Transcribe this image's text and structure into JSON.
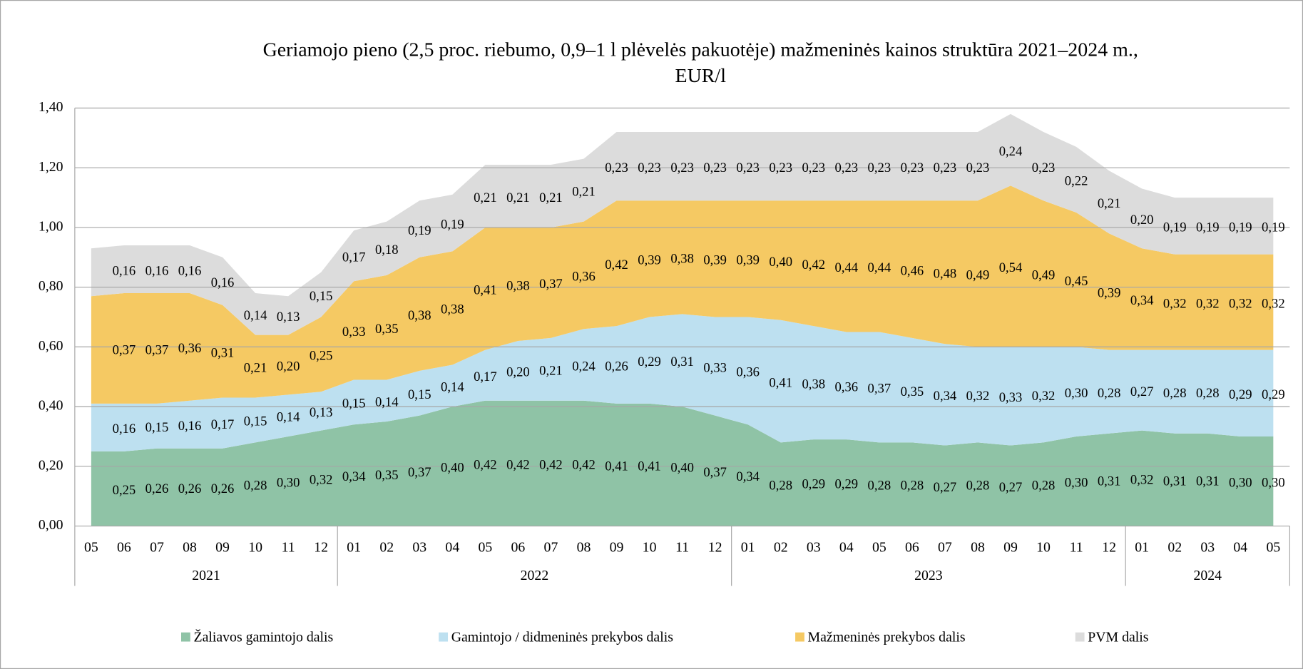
{
  "chart_data": {
    "type": "stacked_area",
    "title": "Geriamojo pieno (2,5 proc. riebumo, 0,9–1 l plėvelės pakuotėje) mažmeninės kainos struktūra 2021–2024 m.,",
    "subtitle": "EUR/l",
    "category_groups": [
      {
        "label": "2021",
        "categories": [
          "05",
          "06",
          "07",
          "08",
          "09",
          "10",
          "11",
          "12"
        ]
      },
      {
        "label": "2022",
        "categories": [
          "01",
          "02",
          "03",
          "04",
          "05",
          "06",
          "07",
          "08",
          "09",
          "10",
          "11",
          "12"
        ]
      },
      {
        "label": "2023",
        "categories": [
          "01",
          "02",
          "03",
          "04",
          "05",
          "06",
          "07",
          "08",
          "09",
          "10",
          "11",
          "12"
        ]
      },
      {
        "label": "2024",
        "categories": [
          "01",
          "02",
          "03",
          "04",
          "05"
        ]
      }
    ],
    "ylim": [
      0,
      1.4
    ],
    "yticks": [
      {
        "value": 0,
        "label": "0,00"
      },
      {
        "value": 0.2,
        "label": "0,20"
      },
      {
        "value": 0.4,
        "label": "0,40"
      },
      {
        "value": 0.6,
        "label": "0,60"
      },
      {
        "value": 0.8,
        "label": "0,80"
      },
      {
        "value": 1.0,
        "label": "1,00"
      },
      {
        "value": 1.2,
        "label": "1,20"
      },
      {
        "value": 1.4,
        "label": "1,40"
      }
    ],
    "grid": true,
    "legend": "bottom",
    "series": [
      {
        "name": "Žaliavos gamintojo dalis",
        "color": "#8fc3a6",
        "values": [
          0.25,
          0.25,
          0.26,
          0.26,
          0.26,
          0.28,
          0.3,
          0.32,
          0.34,
          0.35,
          0.37,
          0.4,
          0.42,
          0.42,
          0.42,
          0.42,
          0.41,
          0.41,
          0.4,
          0.37,
          0.34,
          0.28,
          0.29,
          0.29,
          0.28,
          0.28,
          0.27,
          0.28,
          0.27,
          0.28,
          0.3,
          0.31,
          0.32,
          0.31,
          0.31,
          0.3,
          0.3
        ],
        "value_labels": [
          null,
          "0,25",
          "0,26",
          "0,26",
          "0,26",
          "0,28",
          "0,30",
          "0,32",
          "0,34",
          "0,35",
          "0,37",
          "0,40",
          "0,42",
          "0,42",
          "0,42",
          "0,42",
          "0,41",
          "0,41",
          "0,40",
          "0,37",
          "0,34",
          "0,28",
          "0,29",
          "0,29",
          "0,28",
          "0,28",
          "0,27",
          "0,28",
          "0,27",
          "0,28",
          "0,30",
          "0,31",
          "0,32",
          "0,31",
          "0,31",
          "0,30",
          "0,30"
        ]
      },
      {
        "name": "Gamintojo / didmeninės prekybos dalis",
        "color": "#bde0f0",
        "values": [
          0.16,
          0.16,
          0.15,
          0.16,
          0.17,
          0.15,
          0.14,
          0.13,
          0.15,
          0.14,
          0.15,
          0.14,
          0.17,
          0.2,
          0.21,
          0.24,
          0.26,
          0.29,
          0.31,
          0.33,
          0.36,
          0.41,
          0.38,
          0.36,
          0.37,
          0.35,
          0.34,
          0.32,
          0.33,
          0.32,
          0.3,
          0.28,
          0.27,
          0.28,
          0.28,
          0.29,
          0.29
        ],
        "value_labels": [
          null,
          "0,16",
          "0,15",
          "0,16",
          "0,17",
          "0,15",
          "0,14",
          "0,13",
          "0,15",
          "0,14",
          "0,15",
          "0,14",
          "0,17",
          "0,20",
          "0,21",
          "0,24",
          "0,26",
          "0,29",
          "0,31",
          "0,33",
          "0,36",
          "0,41",
          "0,38",
          "0,36",
          "0,37",
          "0,35",
          "0,34",
          "0,32",
          "0,33",
          "0,32",
          "0,30",
          "0,28",
          "0,27",
          "0,28",
          "0,28",
          "0,29",
          "0,29"
        ]
      },
      {
        "name": "Mažmeninės prekybos dalis",
        "color": "#f5c963",
        "values": [
          0.36,
          0.37,
          0.37,
          0.36,
          0.31,
          0.21,
          0.2,
          0.25,
          0.33,
          0.35,
          0.38,
          0.38,
          0.41,
          0.38,
          0.37,
          0.36,
          0.42,
          0.39,
          0.38,
          0.39,
          0.39,
          0.4,
          0.42,
          0.44,
          0.44,
          0.46,
          0.48,
          0.49,
          0.54,
          0.49,
          0.45,
          0.39,
          0.34,
          0.32,
          0.32,
          0.32,
          0.32
        ],
        "value_labels": [
          null,
          "0,37",
          "0,37",
          "0,36",
          "0,31",
          "0,21",
          "0,20",
          "0,25",
          "0,33",
          "0,35",
          "0,38",
          "0,38",
          "0,41",
          "0,38",
          "0,37",
          "0,36",
          "0,42",
          "0,39",
          "0,38",
          "0,39",
          "0,39",
          "0,40",
          "0,42",
          "0,44",
          "0,44",
          "0,46",
          "0,48",
          "0,49",
          "0,54",
          "0,49",
          "0,45",
          "0,39",
          "0,34",
          "0,32",
          "0,32",
          "0,32",
          "0,32"
        ]
      },
      {
        "name": "PVM dalis",
        "color": "#dcdcdc",
        "values": [
          0.16,
          0.16,
          0.16,
          0.16,
          0.16,
          0.14,
          0.13,
          0.15,
          0.17,
          0.18,
          0.19,
          0.19,
          0.21,
          0.21,
          0.21,
          0.21,
          0.23,
          0.23,
          0.23,
          0.23,
          0.23,
          0.23,
          0.23,
          0.23,
          0.23,
          0.23,
          0.23,
          0.23,
          0.24,
          0.23,
          0.22,
          0.21,
          0.2,
          0.19,
          0.19,
          0.19,
          0.19
        ],
        "value_labels": [
          null,
          "0,16",
          "0,16",
          "0,16",
          "0,16",
          "0,14",
          "0,13",
          "0,15",
          "0,17",
          "0,18",
          "0,19",
          "0,19",
          "0,21",
          "0,21",
          "0,21",
          "0,21",
          "0,23",
          "0,23",
          "0,23",
          "0,23",
          "0,23",
          "0,23",
          "0,23",
          "0,23",
          "0,23",
          "0,23",
          "0,23",
          "0,23",
          "0,24",
          "0,23",
          "0,22",
          "0,21",
          "0,20",
          "0,19",
          "0,19",
          "0,19",
          "0,19"
        ]
      }
    ]
  }
}
